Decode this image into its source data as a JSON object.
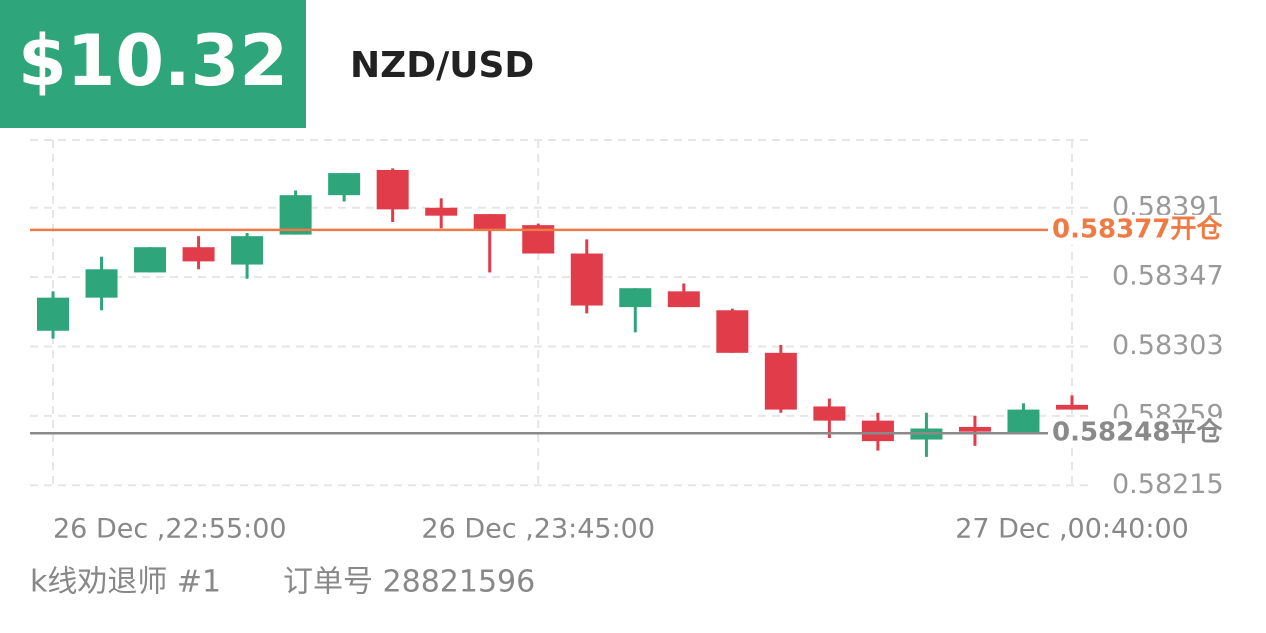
{
  "header": {
    "price": "$10.32",
    "symbol": "NZD/USD"
  },
  "chart_data": {
    "type": "candlestick",
    "categories": [
      "26 Dec ,22:55:00",
      null,
      null,
      null,
      null,
      null,
      null,
      null,
      null,
      null,
      "26 Dec ,23:45:00",
      null,
      null,
      null,
      null,
      null,
      null,
      null,
      null,
      null,
      null,
      "27 Dec ,00:40:00"
    ],
    "open": [
      0.58313,
      0.58334,
      0.5835,
      0.58366,
      0.58355,
      0.58374,
      0.58399,
      0.58415,
      0.58391,
      0.58387,
      0.5838,
      0.58362,
      0.58328,
      0.58338,
      0.58326,
      0.58299,
      0.58265,
      0.58256,
      0.58244,
      0.58252,
      0.58248,
      0.58266
    ],
    "high": [
      0.58338,
      0.5836,
      0.58366,
      0.58373,
      0.58375,
      0.58402,
      0.58413,
      0.58416,
      0.58397,
      0.58387,
      0.58381,
      0.58371,
      0.5834,
      0.58343,
      0.58327,
      0.58304,
      0.5827,
      0.58261,
      0.58261,
      0.58259,
      0.58267,
      0.58272
    ],
    "low": [
      0.58308,
      0.58326,
      0.5835,
      0.58352,
      0.58346,
      0.58374,
      0.58395,
      0.58382,
      0.58378,
      0.5835,
      0.58362,
      0.58324,
      0.58312,
      0.58328,
      0.58299,
      0.58261,
      0.58245,
      0.58237,
      0.58233,
      0.5824,
      0.58248,
      0.58263
    ],
    "close": [
      0.58334,
      0.58352,
      0.58366,
      0.58357,
      0.58373,
      0.58399,
      0.58413,
      0.5839,
      0.58386,
      0.58377,
      0.58362,
      0.58329,
      0.5834,
      0.58328,
      0.58299,
      0.58263,
      0.58256,
      0.58243,
      0.58251,
      0.58249,
      0.58263,
      0.58263
    ],
    "up_color": "#2ea57a",
    "down_color": "#e03c4a",
    "ylim": [
      0.58212,
      0.58434
    ],
    "yticks": [
      0.58215,
      0.58259,
      0.58303,
      0.58347,
      0.58391
    ],
    "grid": true,
    "lines": [
      {
        "value": 0.58377,
        "label": "0.58377开仓",
        "color": "#f07a44"
      },
      {
        "value": 0.58248,
        "label": "0.58248平仓",
        "color": "#8a8a8a"
      }
    ]
  },
  "footer": {
    "author": "k线劝退师 #1",
    "order": "订单号 28821596"
  }
}
